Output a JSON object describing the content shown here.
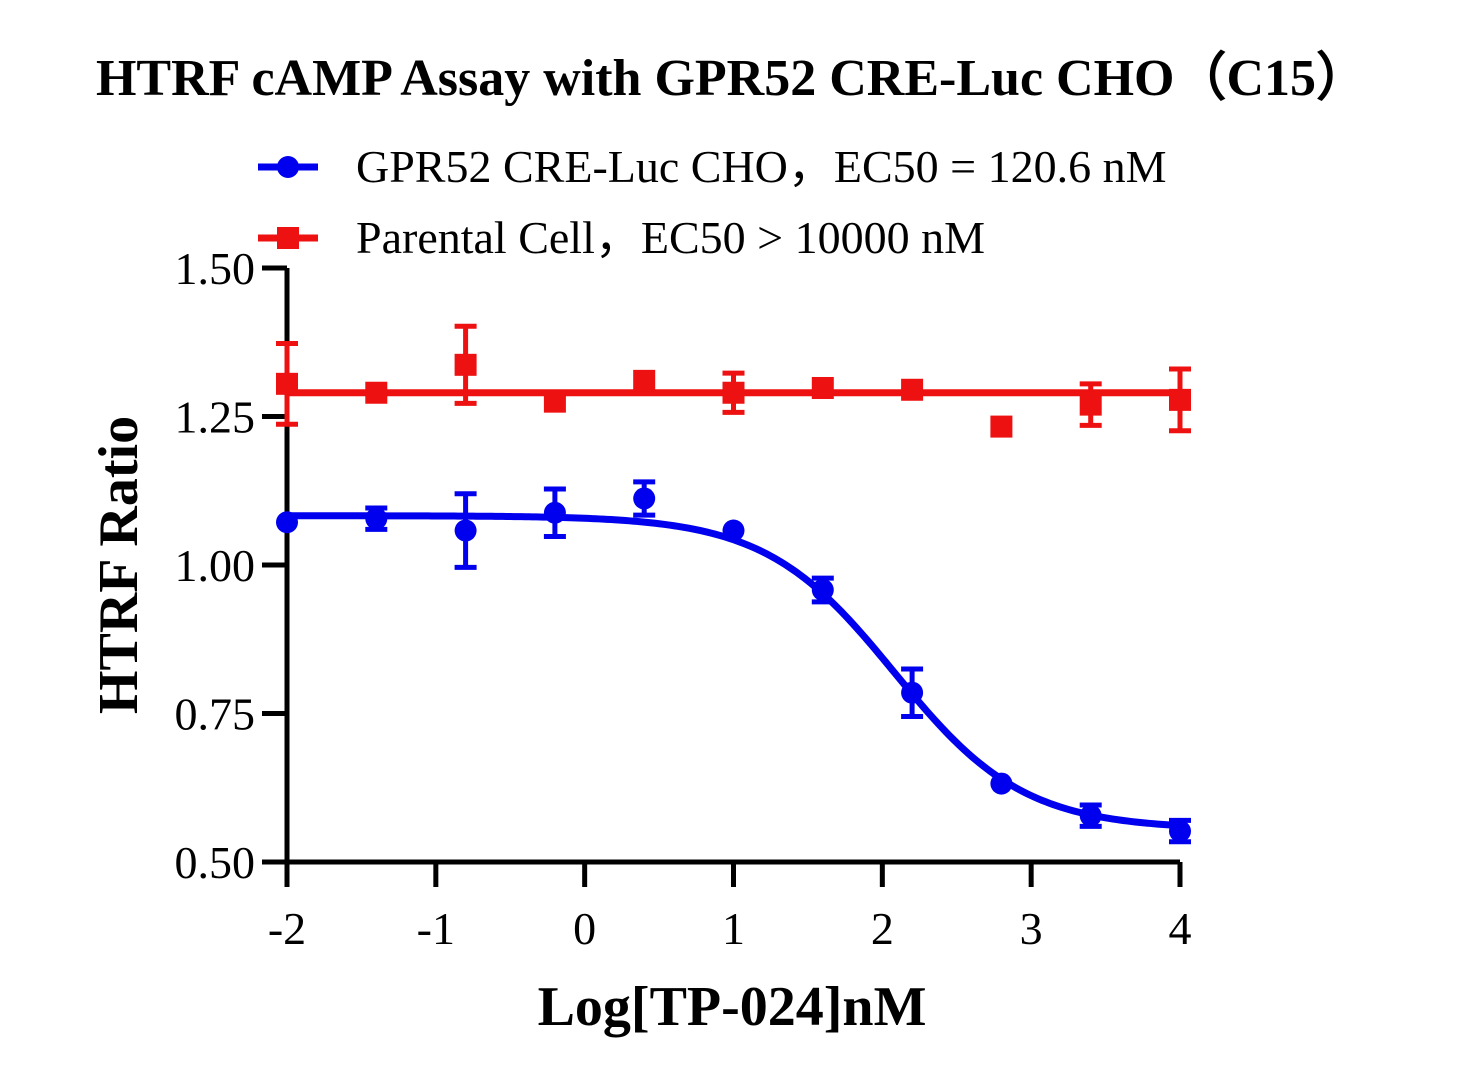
{
  "chart_data": {
    "type": "scatter",
    "title": "HTRF cAMP Assay with GPR52 CRE-Luc CHO（C15）",
    "xlabel": "Log[TP-024]nM",
    "ylabel": "HTRF Ratio",
    "xlim": [
      -2,
      4
    ],
    "ylim": [
      0.5,
      1.5
    ],
    "xticks": [
      -2,
      -1,
      0,
      1,
      2,
      3,
      4
    ],
    "xtick_labels": [
      "-2",
      "-1",
      "0",
      "1",
      "2",
      "3",
      "4"
    ],
    "yticks": [
      0.5,
      0.75,
      1.0,
      1.25,
      1.5
    ],
    "ytick_labels": [
      "0.50",
      "0.75",
      "1.00",
      "1.25",
      "1.50"
    ],
    "grid": false,
    "legend_position": "top",
    "series": [
      {
        "name": "GPR52 CRE-Luc CHO，EC50 = 120.6 nM",
        "color": "#0000ee",
        "marker": "circle",
        "x": [
          -2.0,
          -1.4,
          -0.8,
          -0.2,
          0.4,
          1.0,
          1.6,
          2.2,
          2.8,
          3.4,
          4.0
        ],
        "y": [
          1.072,
          1.078,
          1.058,
          1.088,
          1.112,
          1.058,
          0.958,
          0.785,
          0.632,
          0.578,
          0.552
        ],
        "error": [
          0.0,
          0.018,
          0.062,
          0.04,
          0.028,
          0.0,
          0.02,
          0.04,
          0.0,
          0.018,
          0.018
        ],
        "fit": {
          "model": "four-parameter logistic",
          "top": 1.083,
          "bottom": 0.555,
          "log_ec50": 2.081,
          "hill_slope": -1.0
        }
      },
      {
        "name": "Parental Cell，EC50 > 10000 nM",
        "color": "#ee1111",
        "marker": "square",
        "x": [
          -2.0,
          -1.4,
          -0.8,
          -0.2,
          0.4,
          1.0,
          1.6,
          2.2,
          2.8,
          3.4,
          4.0
        ],
        "y": [
          1.305,
          1.29,
          1.337,
          1.275,
          1.31,
          1.29,
          1.298,
          1.295,
          1.233,
          1.27,
          1.278
        ],
        "error": [
          0.068,
          0.0,
          0.065,
          0.0,
          0.0,
          0.033,
          0.0,
          0.0,
          0.0,
          0.035,
          0.052
        ],
        "fit": {
          "model": "flat",
          "value": 1.29
        }
      }
    ]
  }
}
